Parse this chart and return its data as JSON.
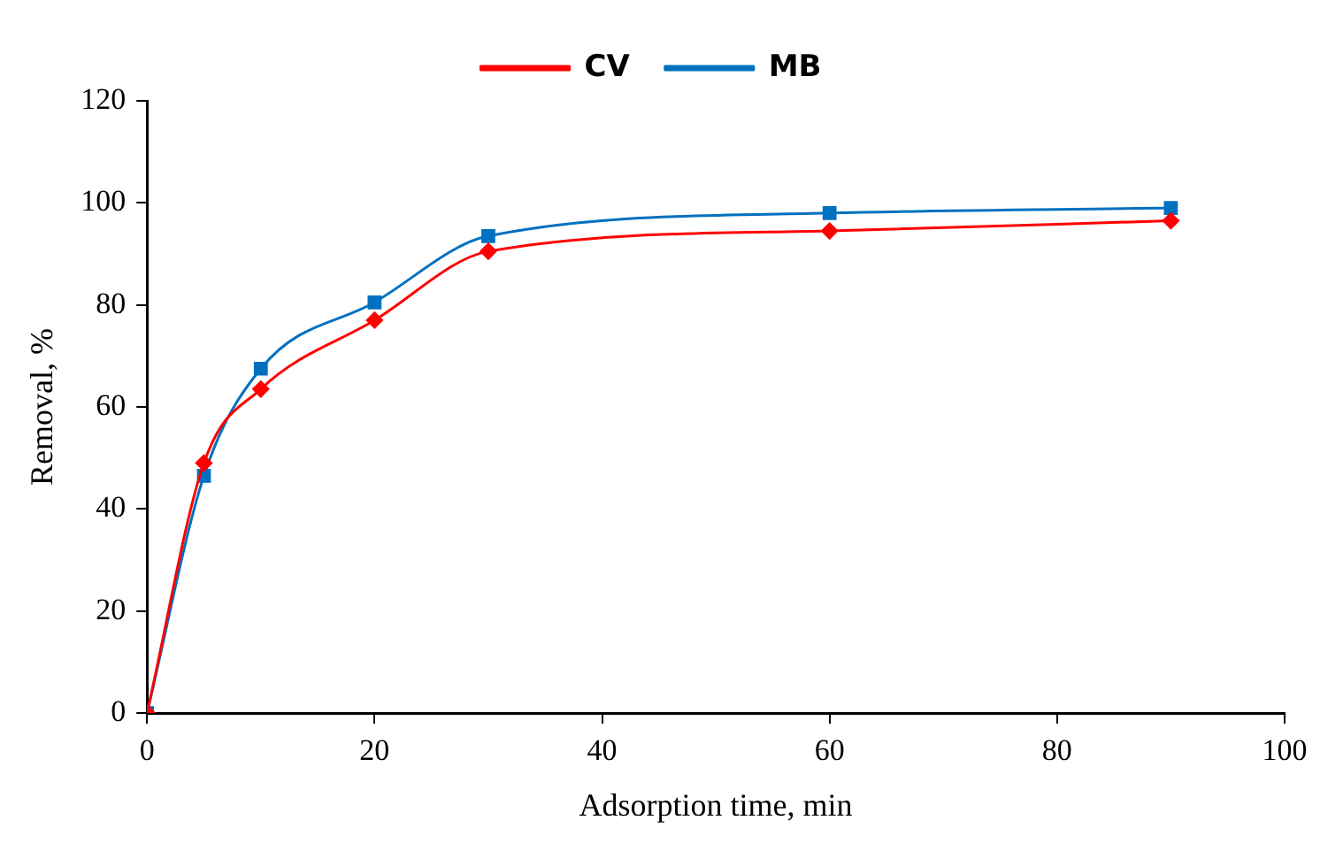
{
  "chart_data": {
    "type": "line",
    "xlabel": "Adsorption time, min",
    "ylabel": "Removal, %",
    "x": [
      0,
      5,
      10,
      20,
      30,
      60,
      90
    ],
    "series": [
      {
        "name": "CV",
        "color": "#ff0000",
        "marker": "diamond",
        "values": [
          0,
          49,
          63.5,
          77,
          90.5,
          94.5,
          96.5
        ]
      },
      {
        "name": "MB",
        "color": "#0070c0",
        "marker": "square",
        "values": [
          0,
          46.5,
          67.5,
          80.5,
          93.5,
          98,
          99
        ]
      }
    ],
    "xlim": [
      0,
      100
    ],
    "xticks": [
      0,
      20,
      40,
      60,
      80,
      100
    ],
    "ylim": [
      0,
      120
    ],
    "yticks": [
      0,
      20,
      40,
      60,
      80,
      100,
      120
    ],
    "grid": false,
    "legend": "top"
  }
}
